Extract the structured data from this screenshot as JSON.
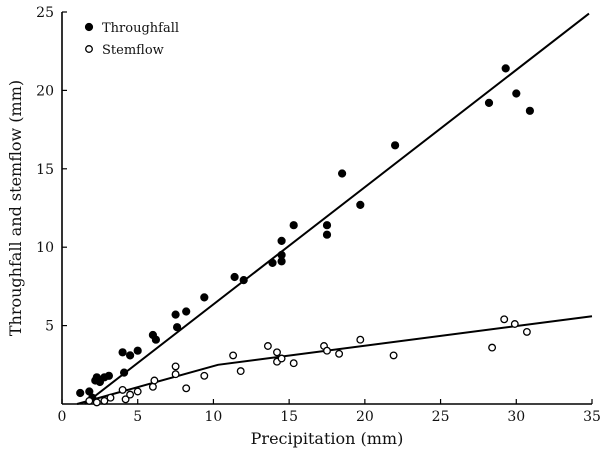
{
  "chart_data": {
    "type": "scatter",
    "xlabel": "Precipitation (mm)",
    "ylabel": "Throughfall and stemflow (mm)",
    "xlim": [
      0,
      35
    ],
    "ylim": [
      0,
      25
    ],
    "xticks": [
      0,
      5,
      10,
      15,
      20,
      25,
      30,
      35
    ],
    "yticks": [
      5,
      10,
      15,
      20,
      25
    ],
    "grid": false,
    "legend_position": "top-left",
    "series": [
      {
        "name": "Throughfall",
        "marker": "filled-circle",
        "color": "#000000",
        "points": [
          [
            1.2,
            0.7
          ],
          [
            1.8,
            0.8
          ],
          [
            2.0,
            0.4
          ],
          [
            2.2,
            1.5
          ],
          [
            2.3,
            1.7
          ],
          [
            2.5,
            1.4
          ],
          [
            2.8,
            1.7
          ],
          [
            3.1,
            1.8
          ],
          [
            4.0,
            3.3
          ],
          [
            4.1,
            2.0
          ],
          [
            4.5,
            3.1
          ],
          [
            5.0,
            3.4
          ],
          [
            6.0,
            4.4
          ],
          [
            6.2,
            4.1
          ],
          [
            7.5,
            5.7
          ],
          [
            7.6,
            4.9
          ],
          [
            8.2,
            5.9
          ],
          [
            9.4,
            6.8
          ],
          [
            11.4,
            8.1
          ],
          [
            12.0,
            7.9
          ],
          [
            13.9,
            9.0
          ],
          [
            14.5,
            10.4
          ],
          [
            14.5,
            9.5
          ],
          [
            14.5,
            9.1
          ],
          [
            15.3,
            11.4
          ],
          [
            17.5,
            11.4
          ],
          [
            17.5,
            10.8
          ],
          [
            18.5,
            14.7
          ],
          [
            19.7,
            12.7
          ],
          [
            22.0,
            16.5
          ],
          [
            28.2,
            19.2
          ],
          [
            29.3,
            21.4
          ],
          [
            30.0,
            19.8
          ],
          [
            30.9,
            18.7
          ]
        ]
      },
      {
        "name": "Stemflow",
        "marker": "open-circle",
        "color": "#000000",
        "points": [
          [
            1.8,
            0.2
          ],
          [
            2.3,
            0.1
          ],
          [
            2.8,
            0.2
          ],
          [
            3.2,
            0.4
          ],
          [
            4.0,
            0.9
          ],
          [
            4.2,
            0.3
          ],
          [
            4.5,
            0.6
          ],
          [
            5.0,
            0.8
          ],
          [
            6.0,
            1.1
          ],
          [
            6.1,
            1.5
          ],
          [
            7.5,
            2.4
          ],
          [
            7.5,
            1.9
          ],
          [
            8.2,
            1.0
          ],
          [
            9.4,
            1.8
          ],
          [
            11.3,
            3.1
          ],
          [
            11.8,
            2.1
          ],
          [
            13.6,
            3.7
          ],
          [
            14.2,
            3.3
          ],
          [
            14.2,
            2.7
          ],
          [
            14.5,
            2.9
          ],
          [
            15.3,
            2.6
          ],
          [
            17.3,
            3.7
          ],
          [
            17.5,
            3.4
          ],
          [
            18.3,
            3.2
          ],
          [
            19.7,
            4.1
          ],
          [
            21.9,
            3.1
          ],
          [
            28.4,
            3.6
          ],
          [
            29.2,
            5.4
          ],
          [
            29.9,
            5.1
          ],
          [
            30.7,
            4.6
          ]
        ]
      }
    ],
    "fit_lines": [
      {
        "series": "Throughfall",
        "points": [
          [
            1.5,
            0.0
          ],
          [
            34.8,
            24.9
          ]
        ]
      },
      {
        "series": "Stemflow",
        "points": [
          [
            1.0,
            0.0
          ],
          [
            10.3,
            2.5
          ],
          [
            35.0,
            5.6
          ]
        ]
      }
    ]
  }
}
